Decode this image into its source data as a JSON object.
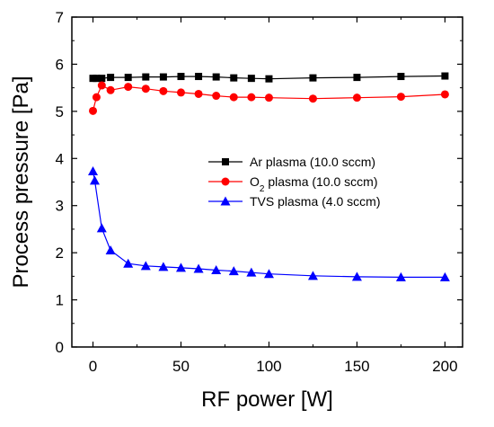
{
  "chart_data": {
    "type": "line",
    "title": "",
    "xlabel": "RF power [W]",
    "ylabel": "Process pressure [Pa]",
    "xlim": [
      -12,
      210
    ],
    "ylim": [
      0,
      7
    ],
    "xticks": [
      0,
      50,
      100,
      150,
      200
    ],
    "yticks": [
      0,
      1,
      2,
      3,
      4,
      5,
      6,
      7
    ],
    "grid": false,
    "legend_position": "center-right",
    "series": [
      {
        "name": "Ar plasma (10.0 sccm)",
        "legend_parts": [
          {
            "text": "Ar plasma (10.0 sccm)",
            "sub": false
          }
        ],
        "color": "#000000",
        "marker": "square",
        "x": [
          0,
          2,
          5,
          10,
          20,
          30,
          40,
          50,
          60,
          70,
          80,
          90,
          100,
          125,
          150,
          175,
          200
        ],
        "y": [
          5.7,
          5.7,
          5.7,
          5.72,
          5.72,
          5.73,
          5.73,
          5.74,
          5.74,
          5.73,
          5.71,
          5.7,
          5.69,
          5.71,
          5.72,
          5.74,
          5.75
        ]
      },
      {
        "name": "O2 plasma (10.0 sccm)",
        "legend_parts": [
          {
            "text": "O",
            "sub": false
          },
          {
            "text": "2",
            "sub": true
          },
          {
            "text": " plasma (10.0 sccm)",
            "sub": false
          }
        ],
        "color": "#ff0000",
        "marker": "circle",
        "x": [
          0,
          2,
          5,
          10,
          20,
          30,
          40,
          50,
          60,
          70,
          80,
          90,
          100,
          125,
          150,
          175,
          200
        ],
        "y": [
          5.01,
          5.3,
          5.55,
          5.45,
          5.52,
          5.48,
          5.43,
          5.4,
          5.37,
          5.33,
          5.3,
          5.3,
          5.29,
          5.27,
          5.29,
          5.31,
          5.36
        ]
      },
      {
        "name": "TVS plasma (4.0 sccm)",
        "legend_parts": [
          {
            "text": "TVS plasma (4.0 sccm)",
            "sub": false
          }
        ],
        "color": "#0000ff",
        "marker": "triangle",
        "x": [
          0,
          1,
          5,
          10,
          20,
          30,
          40,
          50,
          60,
          70,
          80,
          90,
          100,
          125,
          150,
          175,
          200
        ],
        "y": [
          3.73,
          3.53,
          2.52,
          2.05,
          1.77,
          1.72,
          1.7,
          1.68,
          1.66,
          1.63,
          1.61,
          1.58,
          1.55,
          1.51,
          1.49,
          1.48,
          1.48
        ]
      }
    ]
  }
}
